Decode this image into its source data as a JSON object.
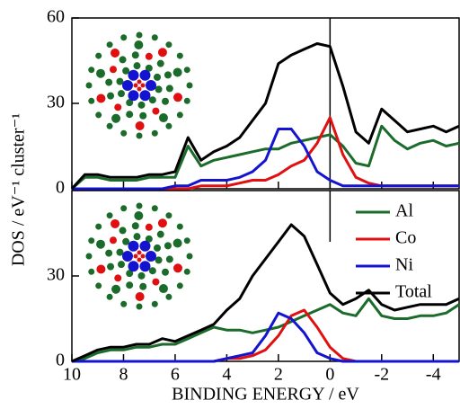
{
  "chart_data": [
    {
      "type": "line",
      "ylabel": "DOS / eV⁻¹ cluster⁻¹",
      "x": [
        10,
        9.5,
        9,
        8.5,
        8,
        7.5,
        7,
        6.5,
        6,
        5.5,
        5,
        4.5,
        4,
        3.5,
        3,
        2.5,
        2,
        1.5,
        1,
        0.5,
        0,
        -0.5,
        -1,
        -1.5,
        -2,
        -2.5,
        -3,
        -3.5,
        -4,
        -4.5,
        -5
      ],
      "xlim": [
        10,
        -5
      ],
      "ylim": [
        0,
        60
      ],
      "yticks": [
        0,
        30,
        60
      ],
      "vline": 0,
      "series": [
        {
          "name": "Al",
          "color": "#1b6b2b",
          "values": [
            0,
            4,
            4,
            3,
            3,
            3,
            4,
            4,
            4,
            15,
            8,
            10,
            11,
            12,
            13,
            14,
            14,
            16,
            17,
            18,
            19,
            15,
            9,
            8,
            22,
            17,
            14,
            16,
            17,
            15,
            16
          ]
        },
        {
          "name": "Co",
          "color": "#e01010",
          "values": [
            0,
            0,
            0,
            0,
            0,
            0,
            0,
            0,
            0,
            0,
            1,
            1,
            1,
            2,
            3,
            3,
            5,
            8,
            10,
            16,
            25,
            12,
            4,
            2,
            1,
            1,
            1,
            1,
            1,
            1,
            1
          ]
        },
        {
          "name": "Ni",
          "color": "#1414d0",
          "values": [
            0,
            0,
            0,
            0,
            0,
            0,
            0,
            0,
            1,
            1,
            3,
            3,
            3,
            4,
            6,
            10,
            21,
            21,
            15,
            6,
            3,
            1,
            1,
            1,
            1,
            1,
            1,
            1,
            1,
            1,
            1
          ]
        },
        {
          "name": "Total",
          "color": "#000000",
          "values": [
            0,
            5,
            5,
            4,
            4,
            4,
            5,
            5,
            6,
            18,
            10,
            13,
            15,
            18,
            24,
            30,
            44,
            47,
            49,
            51,
            50,
            36,
            20,
            16,
            28,
            24,
            20,
            21,
            22,
            20,
            22
          ]
        }
      ]
    },
    {
      "type": "line",
      "xlabel": "BINDING ENERGY / eV",
      "x": [
        10,
        9.5,
        9,
        8.5,
        8,
        7.5,
        7,
        6.5,
        6,
        5.5,
        5,
        4.5,
        4,
        3.5,
        3,
        2.5,
        2,
        1.5,
        1,
        0.5,
        0,
        -0.5,
        -1,
        -1.5,
        -2,
        -2.5,
        -3,
        -3.5,
        -4,
        -4.5,
        -5
      ],
      "xlim": [
        10,
        -5
      ],
      "xticks": [
        10,
        8,
        6,
        4,
        2,
        0,
        -2,
        -4
      ],
      "ylim": [
        0,
        60
      ],
      "yticks": [
        0,
        30
      ],
      "vline": 0,
      "legend": "upper right",
      "series": [
        {
          "name": "Al",
          "color": "#1b6b2b",
          "values": [
            0,
            1,
            3,
            4,
            4,
            5,
            5,
            6,
            6,
            8,
            10,
            12,
            11,
            11,
            10,
            11,
            12,
            14,
            16,
            18,
            20,
            17,
            16,
            22,
            16,
            15,
            15,
            16,
            16,
            17,
            20
          ]
        },
        {
          "name": "Co",
          "color": "#e01010",
          "values": [
            0,
            0,
            0,
            0,
            0,
            0,
            0,
            0,
            0,
            0,
            0,
            0,
            1,
            1,
            2,
            4,
            9,
            16,
            18,
            12,
            5,
            1,
            0,
            0,
            0,
            0,
            0,
            0,
            0,
            0,
            0
          ]
        },
        {
          "name": "Ni",
          "color": "#1414d0",
          "values": [
            0,
            0,
            0,
            0,
            0,
            0,
            0,
            0,
            0,
            0,
            0,
            0,
            1,
            2,
            3,
            9,
            17,
            15,
            10,
            3,
            1,
            0,
            0,
            0,
            0,
            0,
            0,
            0,
            0,
            0,
            0
          ]
        },
        {
          "name": "Total",
          "color": "#000000",
          "values": [
            0,
            2,
            4,
            5,
            5,
            6,
            6,
            8,
            7,
            9,
            11,
            13,
            18,
            22,
            30,
            36,
            42,
            48,
            44,
            34,
            24,
            20,
            22,
            25,
            20,
            18,
            19,
            20,
            20,
            20,
            22
          ]
        }
      ]
    }
  ]
}
